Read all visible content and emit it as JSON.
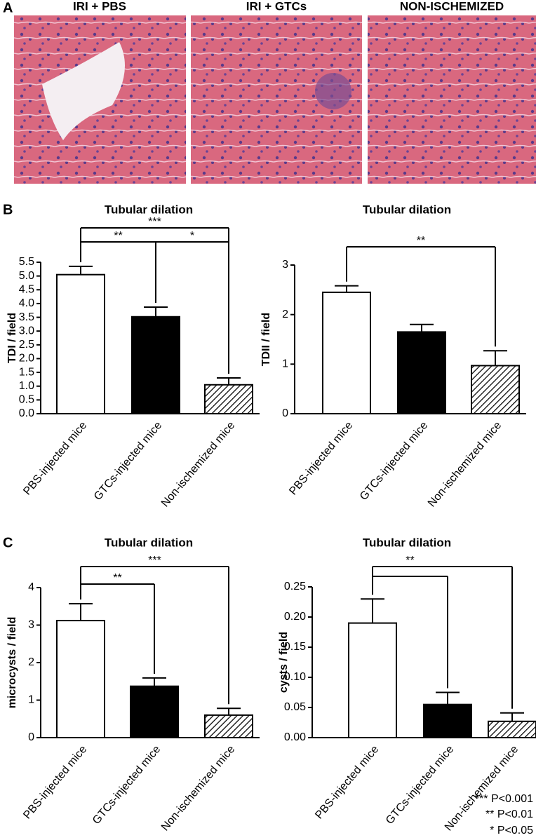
{
  "figure": {
    "panel_labels": [
      "A",
      "B",
      "C"
    ],
    "image_titles": [
      "IRI + PBS",
      "IRI + GTCs",
      "NON-ISCHEMIZED"
    ],
    "significance_key": [
      "*** P<0.001",
      "** P<0.01",
      "* P<0.05"
    ]
  },
  "chart_data": [
    {
      "type": "bar",
      "title": "Tubular dilation",
      "ylabel": "TDI / field",
      "categories": [
        "PBS-injected mice",
        "GTCs-injected mice",
        "Non-ischemized mice"
      ],
      "values": [
        5.05,
        3.52,
        1.05
      ],
      "errors": [
        0.3,
        0.35,
        0.25
      ],
      "fills": [
        "#ffffff",
        "#000000",
        "hatch"
      ],
      "ylim": [
        0,
        5.5
      ],
      "yticks": [
        {
          "value": 0,
          "label": "0.0"
        },
        0.5,
        {
          "value": 1,
          "label": "1.0"
        },
        1.5,
        {
          "value": 2,
          "label": "2.0"
        },
        2.5,
        {
          "value": 3,
          "label": "3.0"
        },
        3.5,
        {
          "value": 4,
          "label": "4.0"
        },
        4.5,
        {
          "value": 5,
          "label": "5.0"
        },
        5.5
      ],
      "brackets": [
        {
          "label": "***",
          "from": 0,
          "to": 2
        },
        {
          "label": "**",
          "from": 0,
          "to": 1
        },
        {
          "label": "*",
          "from": 1,
          "to": 2
        }
      ]
    },
    {
      "type": "bar",
      "title": "Tubular dilation",
      "ylabel": "TDII / field",
      "categories": [
        "PBS-injected mice",
        "GTCs-injected mice",
        "Non-ischemized mice"
      ],
      "values": [
        2.45,
        1.65,
        0.97
      ],
      "errors": [
        0.13,
        0.15,
        0.3
      ],
      "fills": [
        "#ffffff",
        "#000000",
        "hatch"
      ],
      "ylim": [
        0,
        3
      ],
      "yticks": [
        0,
        1,
        2,
        3
      ],
      "brackets": [
        {
          "label": "**",
          "from": 0,
          "to": 2
        }
      ]
    },
    {
      "type": "bar",
      "title": "Tubular dilation",
      "ylabel": "microcysts / field",
      "categories": [
        "PBS-injected mice",
        "GTCs-injected mice",
        "Non-ischemized mice"
      ],
      "values": [
        3.12,
        1.37,
        0.6
      ],
      "errors": [
        0.45,
        0.22,
        0.18
      ],
      "fills": [
        "#ffffff",
        "#000000",
        "hatch"
      ],
      "ylim": [
        0,
        4
      ],
      "yticks": [
        0,
        1,
        2,
        3,
        4
      ],
      "brackets": [
        {
          "label": "***",
          "from": 0,
          "to": 2
        },
        {
          "label": "**",
          "from": 0,
          "to": 1
        }
      ]
    },
    {
      "type": "bar",
      "title": "Tubular dilation",
      "ylabel": "cysts / field",
      "categories": [
        "PBS-injected mice",
        "GTCs-injected mice",
        "Non-ischemized mice"
      ],
      "values": [
        0.19,
        0.055,
        0.027
      ],
      "errors": [
        0.04,
        0.02,
        0.014
      ],
      "fills": [
        "#ffffff",
        "#000000",
        "hatch"
      ],
      "ylim": [
        0,
        0.25
      ],
      "yticks": [
        {
          "value": 0,
          "label": "0.00"
        },
        0.05,
        {
          "value": 0.1,
          "label": "0.10"
        },
        0.15,
        {
          "value": 0.2,
          "label": "0.20"
        },
        0.25
      ],
      "brackets": [
        {
          "label": "**",
          "from": 0,
          "to": [
            1,
            2
          ]
        }
      ]
    }
  ]
}
